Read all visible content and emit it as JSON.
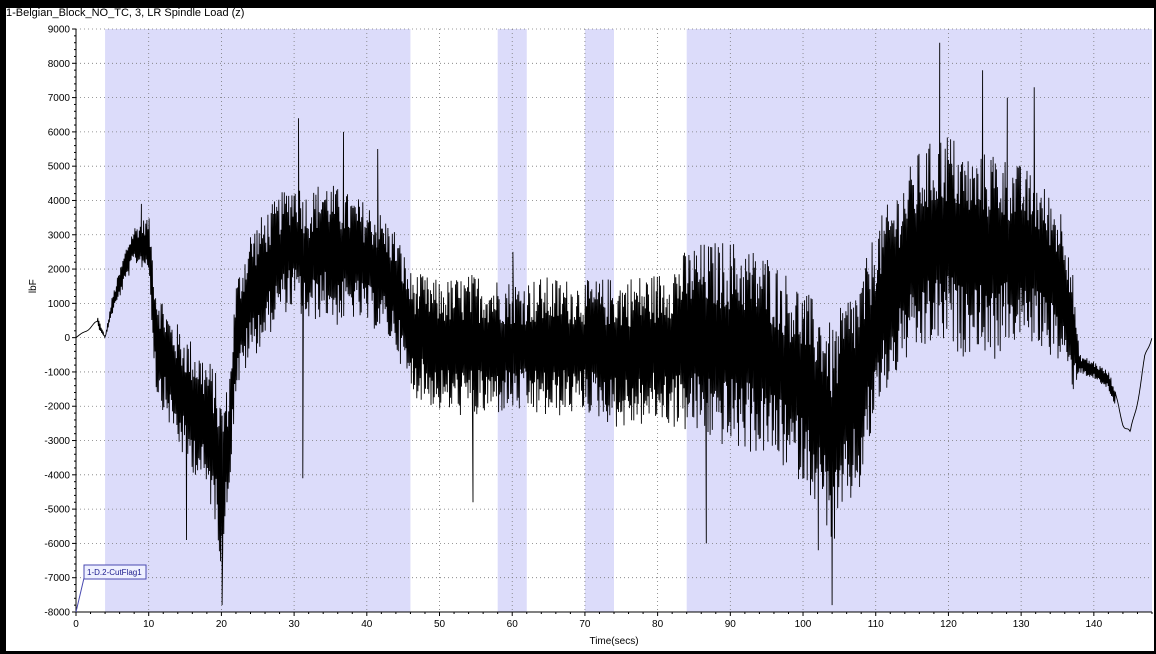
{
  "window": {
    "title": "1-Belgian_Block_NO_TC, 3, LR Spindle Load (z)"
  },
  "chart_data": {
    "type": "line",
    "title": "1-Belgian_Block_NO_TC, 3, LR Spindle Load (z)",
    "xlabel": "Time(secs)",
    "ylabel": "lbF",
    "xlim": [
      0,
      148
    ],
    "ylim": [
      -8000,
      9000
    ],
    "x_ticks": [
      0,
      10,
      20,
      30,
      40,
      50,
      60,
      70,
      80,
      90,
      100,
      110,
      120,
      130,
      140
    ],
    "y_ticks": [
      -8000,
      -7000,
      -6000,
      -5000,
      -4000,
      -3000,
      -2000,
      -1000,
      0,
      1000,
      2000,
      3000,
      4000,
      5000,
      6000,
      7000,
      8000,
      9000
    ],
    "grid": true,
    "series": [
      {
        "name": "",
        "color": "#000000",
        "envelope_x": [
          0,
          3,
          4,
          5,
          7,
          8,
          10,
          11,
          13,
          15,
          17,
          19,
          20,
          21,
          22,
          24,
          26,
          28,
          30,
          32,
          34,
          36,
          38,
          40,
          42,
          44,
          46,
          50,
          55,
          60,
          65,
          70,
          75,
          80,
          85,
          90,
          95,
          100,
          103,
          104,
          106,
          108,
          110,
          112,
          114,
          116,
          118,
          120,
          122,
          124,
          126,
          128,
          130,
          132,
          134,
          136,
          137,
          138,
          140,
          142,
          143,
          144,
          145,
          147,
          148
        ],
        "envelope_min": [
          0,
          300,
          0,
          700,
          1700,
          2200,
          2000,
          -1500,
          -2500,
          -3500,
          -4000,
          -5000,
          -6500,
          -4500,
          -1500,
          -500,
          0,
          800,
          1000,
          500,
          800,
          500,
          700,
          500,
          300,
          -200,
          -1500,
          -2000,
          -2200,
          -2000,
          -2200,
          -2000,
          -2500,
          -2300,
          -2600,
          -3000,
          -3200,
          -4000,
          -5000,
          -6000,
          -4800,
          -4200,
          -2000,
          -1200,
          -500,
          -300,
          0,
          0,
          -300,
          0,
          -500,
          0,
          100,
          0,
          -300,
          -800,
          -1500,
          -1000,
          -1200,
          -1500,
          -2000,
          -2800,
          -3300,
          -1000,
          0
        ],
        "envelope_max": [
          0,
          600,
          0,
          1200,
          2700,
          3200,
          3500,
          1500,
          500,
          0,
          -500,
          -1000,
          -2000,
          -1500,
          1500,
          3000,
          3500,
          4000,
          4500,
          4000,
          4500,
          4200,
          4000,
          3800,
          3500,
          3000,
          1800,
          1500,
          1700,
          1500,
          1600,
          1500,
          1600,
          1700,
          2500,
          2600,
          2200,
          1200,
          500,
          0,
          1000,
          1500,
          3000,
          3800,
          4500,
          5200,
          5500,
          5800,
          5200,
          5000,
          5300,
          5000,
          4800,
          4500,
          4000,
          3500,
          2000,
          -500,
          -700,
          -1000,
          -1500,
          -2000,
          -2500,
          -300,
          0
        ],
        "spikes": [
          {
            "x": 9,
            "y": 3900
          },
          {
            "x": 15.2,
            "y": -5900
          },
          {
            "x": 20.1,
            "y": -7800
          },
          {
            "x": 30.6,
            "y": 6400
          },
          {
            "x": 31.2,
            "y": -4100
          },
          {
            "x": 36.8,
            "y": 6000
          },
          {
            "x": 41.5,
            "y": 5500
          },
          {
            "x": 54.6,
            "y": -4800
          },
          {
            "x": 60.1,
            "y": 2500
          },
          {
            "x": 86.7,
            "y": -6000
          },
          {
            "x": 102.1,
            "y": -6200
          },
          {
            "x": 104,
            "y": -7800
          },
          {
            "x": 118.8,
            "y": 8600
          },
          {
            "x": 124.7,
            "y": 7800
          },
          {
            "x": 128.1,
            "y": 7000
          },
          {
            "x": 131.8,
            "y": 7300
          }
        ]
      }
    ],
    "highlight_bands_x": [
      [
        4,
        46
      ],
      [
        58,
        62
      ],
      [
        70,
        74
      ],
      [
        84,
        148
      ]
    ],
    "band_color": "#dcdcfa",
    "annotation": {
      "label": "1-D.2-CutFlag1",
      "x": 0,
      "y": -8000
    }
  }
}
